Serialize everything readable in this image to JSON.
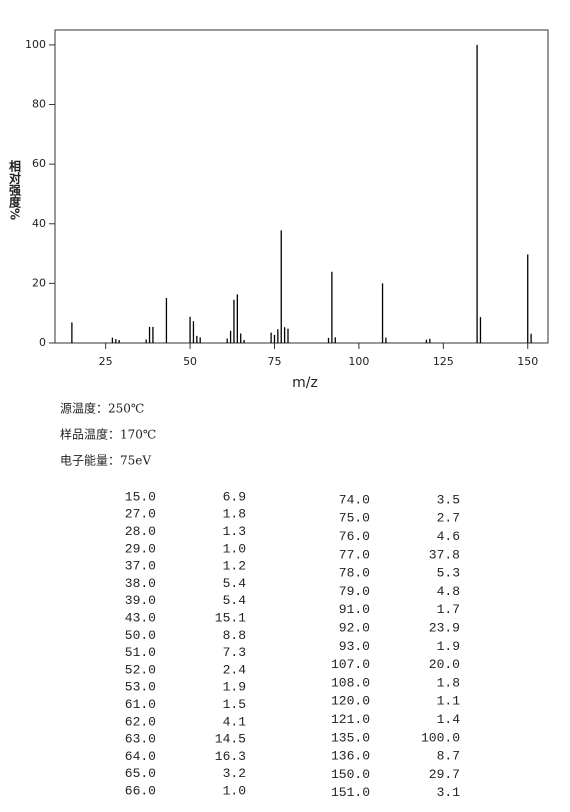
{
  "chart_data": {
    "type": "bar",
    "x_label": "m/z",
    "y_label": "相对强度%",
    "x": [
      15,
      27,
      28,
      29,
      37,
      38,
      39,
      43,
      50,
      51,
      52,
      53,
      61,
      62,
      63,
      64,
      65,
      66,
      74,
      75,
      76,
      77,
      78,
      79,
      91,
      92,
      93,
      107,
      108,
      120,
      121,
      135,
      136,
      150,
      151
    ],
    "values": [
      6.9,
      1.8,
      1.3,
      1.0,
      1.2,
      5.4,
      5.4,
      15.1,
      8.8,
      7.3,
      2.4,
      1.9,
      1.5,
      4.1,
      14.5,
      16.3,
      3.2,
      1.0,
      3.5,
      2.7,
      4.6,
      37.8,
      5.3,
      4.8,
      1.7,
      23.9,
      1.9,
      20.0,
      1.8,
      1.1,
      1.4,
      100.0,
      8.7,
      29.7,
      3.1
    ],
    "color": "#000000",
    "xlim": [
      10,
      156
    ],
    "xticks": [
      25,
      50,
      75,
      100,
      125,
      150
    ],
    "ylim": [
      0,
      105
    ],
    "yticks": [
      0,
      20,
      40,
      60,
      80,
      100
    ]
  },
  "info": [
    "源温度：250℃",
    "样品温度：170℃",
    "电子能量：75eV"
  ],
  "table": {
    "left": [
      [
        "15.0",
        "6.9"
      ],
      [
        "27.0",
        "1.8"
      ],
      [
        "28.0",
        "1.3"
      ],
      [
        "29.0",
        "1.0"
      ],
      [
        "37.0",
        "1.2"
      ],
      [
        "38.0",
        "5.4"
      ],
      [
        "39.0",
        "5.4"
      ],
      [
        "43.0",
        "15.1"
      ],
      [
        "50.0",
        "8.8"
      ],
      [
        "51.0",
        "7.3"
      ],
      [
        "52.0",
        "2.4"
      ],
      [
        "53.0",
        "1.9"
      ],
      [
        "61.0",
        "1.5"
      ],
      [
        "62.0",
        "4.1"
      ],
      [
        "63.0",
        "14.5"
      ],
      [
        "64.0",
        "16.3"
      ],
      [
        "65.0",
        "3.2"
      ],
      [
        "66.0",
        "1.0"
      ]
    ],
    "right": [
      [
        "74.0",
        "3.5"
      ],
      [
        "75.0",
        "2.7"
      ],
      [
        "76.0",
        "4.6"
      ],
      [
        "77.0",
        "37.8"
      ],
      [
        "78.0",
        "5.3"
      ],
      [
        "79.0",
        "4.8"
      ],
      [
        "91.0",
        "1.7"
      ],
      [
        "92.0",
        "23.9"
      ],
      [
        "93.0",
        "1.9"
      ],
      [
        "107.0",
        "20.0"
      ],
      [
        "108.0",
        "1.8"
      ],
      [
        "120.0",
        "1.1"
      ],
      [
        "121.0",
        "1.4"
      ],
      [
        "135.0",
        "100.0"
      ],
      [
        "136.0",
        "8.7"
      ],
      [
        "150.0",
        "29.7"
      ],
      [
        "151.0",
        "3.1"
      ]
    ]
  }
}
